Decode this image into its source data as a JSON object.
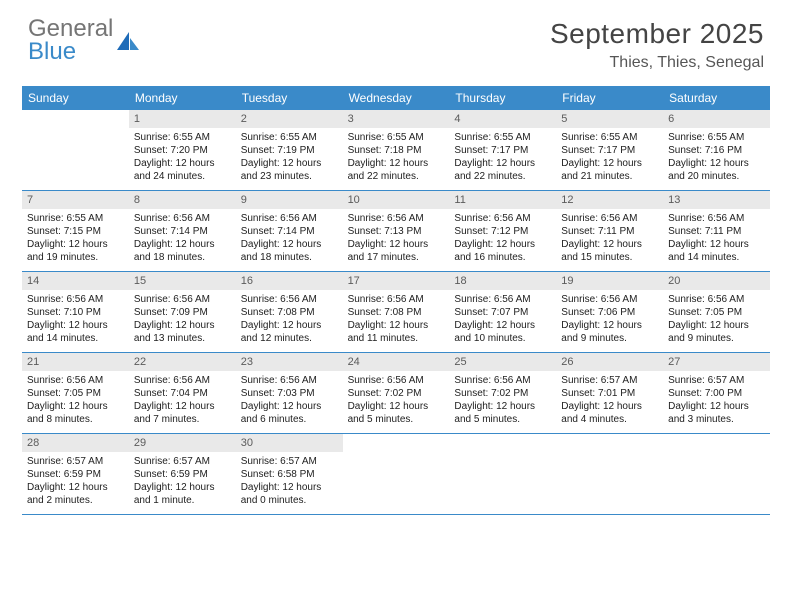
{
  "logo": {
    "word1": "General",
    "word2": "Blue"
  },
  "title": "September 2025",
  "location": "Thies, Thies, Senegal",
  "weekdays": [
    "Sunday",
    "Monday",
    "Tuesday",
    "Wednesday",
    "Thursday",
    "Friday",
    "Saturday"
  ],
  "colors": {
    "header_bar": "#3a8ac9",
    "daynum_bg": "#e9e9e9",
    "text": "#212121",
    "title_text": "#444444",
    "logo_gray": "#757575",
    "logo_blue": "#3a8ac9"
  },
  "weeks": [
    [
      {
        "n": "",
        "sr": "",
        "ss": "",
        "dl": "",
        "empty": true
      },
      {
        "n": "1",
        "sr": "Sunrise: 6:55 AM",
        "ss": "Sunset: 7:20 PM",
        "dl": "Daylight: 12 hours and 24 minutes."
      },
      {
        "n": "2",
        "sr": "Sunrise: 6:55 AM",
        "ss": "Sunset: 7:19 PM",
        "dl": "Daylight: 12 hours and 23 minutes."
      },
      {
        "n": "3",
        "sr": "Sunrise: 6:55 AM",
        "ss": "Sunset: 7:18 PM",
        "dl": "Daylight: 12 hours and 22 minutes."
      },
      {
        "n": "4",
        "sr": "Sunrise: 6:55 AM",
        "ss": "Sunset: 7:17 PM",
        "dl": "Daylight: 12 hours and 22 minutes."
      },
      {
        "n": "5",
        "sr": "Sunrise: 6:55 AM",
        "ss": "Sunset: 7:17 PM",
        "dl": "Daylight: 12 hours and 21 minutes."
      },
      {
        "n": "6",
        "sr": "Sunrise: 6:55 AM",
        "ss": "Sunset: 7:16 PM",
        "dl": "Daylight: 12 hours and 20 minutes."
      }
    ],
    [
      {
        "n": "7",
        "sr": "Sunrise: 6:55 AM",
        "ss": "Sunset: 7:15 PM",
        "dl": "Daylight: 12 hours and 19 minutes."
      },
      {
        "n": "8",
        "sr": "Sunrise: 6:56 AM",
        "ss": "Sunset: 7:14 PM",
        "dl": "Daylight: 12 hours and 18 minutes."
      },
      {
        "n": "9",
        "sr": "Sunrise: 6:56 AM",
        "ss": "Sunset: 7:14 PM",
        "dl": "Daylight: 12 hours and 18 minutes."
      },
      {
        "n": "10",
        "sr": "Sunrise: 6:56 AM",
        "ss": "Sunset: 7:13 PM",
        "dl": "Daylight: 12 hours and 17 minutes."
      },
      {
        "n": "11",
        "sr": "Sunrise: 6:56 AM",
        "ss": "Sunset: 7:12 PM",
        "dl": "Daylight: 12 hours and 16 minutes."
      },
      {
        "n": "12",
        "sr": "Sunrise: 6:56 AM",
        "ss": "Sunset: 7:11 PM",
        "dl": "Daylight: 12 hours and 15 minutes."
      },
      {
        "n": "13",
        "sr": "Sunrise: 6:56 AM",
        "ss": "Sunset: 7:11 PM",
        "dl": "Daylight: 12 hours and 14 minutes."
      }
    ],
    [
      {
        "n": "14",
        "sr": "Sunrise: 6:56 AM",
        "ss": "Sunset: 7:10 PM",
        "dl": "Daylight: 12 hours and 14 minutes."
      },
      {
        "n": "15",
        "sr": "Sunrise: 6:56 AM",
        "ss": "Sunset: 7:09 PM",
        "dl": "Daylight: 12 hours and 13 minutes."
      },
      {
        "n": "16",
        "sr": "Sunrise: 6:56 AM",
        "ss": "Sunset: 7:08 PM",
        "dl": "Daylight: 12 hours and 12 minutes."
      },
      {
        "n": "17",
        "sr": "Sunrise: 6:56 AM",
        "ss": "Sunset: 7:08 PM",
        "dl": "Daylight: 12 hours and 11 minutes."
      },
      {
        "n": "18",
        "sr": "Sunrise: 6:56 AM",
        "ss": "Sunset: 7:07 PM",
        "dl": "Daylight: 12 hours and 10 minutes."
      },
      {
        "n": "19",
        "sr": "Sunrise: 6:56 AM",
        "ss": "Sunset: 7:06 PM",
        "dl": "Daylight: 12 hours and 9 minutes."
      },
      {
        "n": "20",
        "sr": "Sunrise: 6:56 AM",
        "ss": "Sunset: 7:05 PM",
        "dl": "Daylight: 12 hours and 9 minutes."
      }
    ],
    [
      {
        "n": "21",
        "sr": "Sunrise: 6:56 AM",
        "ss": "Sunset: 7:05 PM",
        "dl": "Daylight: 12 hours and 8 minutes."
      },
      {
        "n": "22",
        "sr": "Sunrise: 6:56 AM",
        "ss": "Sunset: 7:04 PM",
        "dl": "Daylight: 12 hours and 7 minutes."
      },
      {
        "n": "23",
        "sr": "Sunrise: 6:56 AM",
        "ss": "Sunset: 7:03 PM",
        "dl": "Daylight: 12 hours and 6 minutes."
      },
      {
        "n": "24",
        "sr": "Sunrise: 6:56 AM",
        "ss": "Sunset: 7:02 PM",
        "dl": "Daylight: 12 hours and 5 minutes."
      },
      {
        "n": "25",
        "sr": "Sunrise: 6:56 AM",
        "ss": "Sunset: 7:02 PM",
        "dl": "Daylight: 12 hours and 5 minutes."
      },
      {
        "n": "26",
        "sr": "Sunrise: 6:57 AM",
        "ss": "Sunset: 7:01 PM",
        "dl": "Daylight: 12 hours and 4 minutes."
      },
      {
        "n": "27",
        "sr": "Sunrise: 6:57 AM",
        "ss": "Sunset: 7:00 PM",
        "dl": "Daylight: 12 hours and 3 minutes."
      }
    ],
    [
      {
        "n": "28",
        "sr": "Sunrise: 6:57 AM",
        "ss": "Sunset: 6:59 PM",
        "dl": "Daylight: 12 hours and 2 minutes."
      },
      {
        "n": "29",
        "sr": "Sunrise: 6:57 AM",
        "ss": "Sunset: 6:59 PM",
        "dl": "Daylight: 12 hours and 1 minute."
      },
      {
        "n": "30",
        "sr": "Sunrise: 6:57 AM",
        "ss": "Sunset: 6:58 PM",
        "dl": "Daylight: 12 hours and 0 minutes."
      },
      {
        "n": "",
        "sr": "",
        "ss": "",
        "dl": "",
        "empty": true
      },
      {
        "n": "",
        "sr": "",
        "ss": "",
        "dl": "",
        "empty": true
      },
      {
        "n": "",
        "sr": "",
        "ss": "",
        "dl": "",
        "empty": true
      },
      {
        "n": "",
        "sr": "",
        "ss": "",
        "dl": "",
        "empty": true
      }
    ]
  ]
}
